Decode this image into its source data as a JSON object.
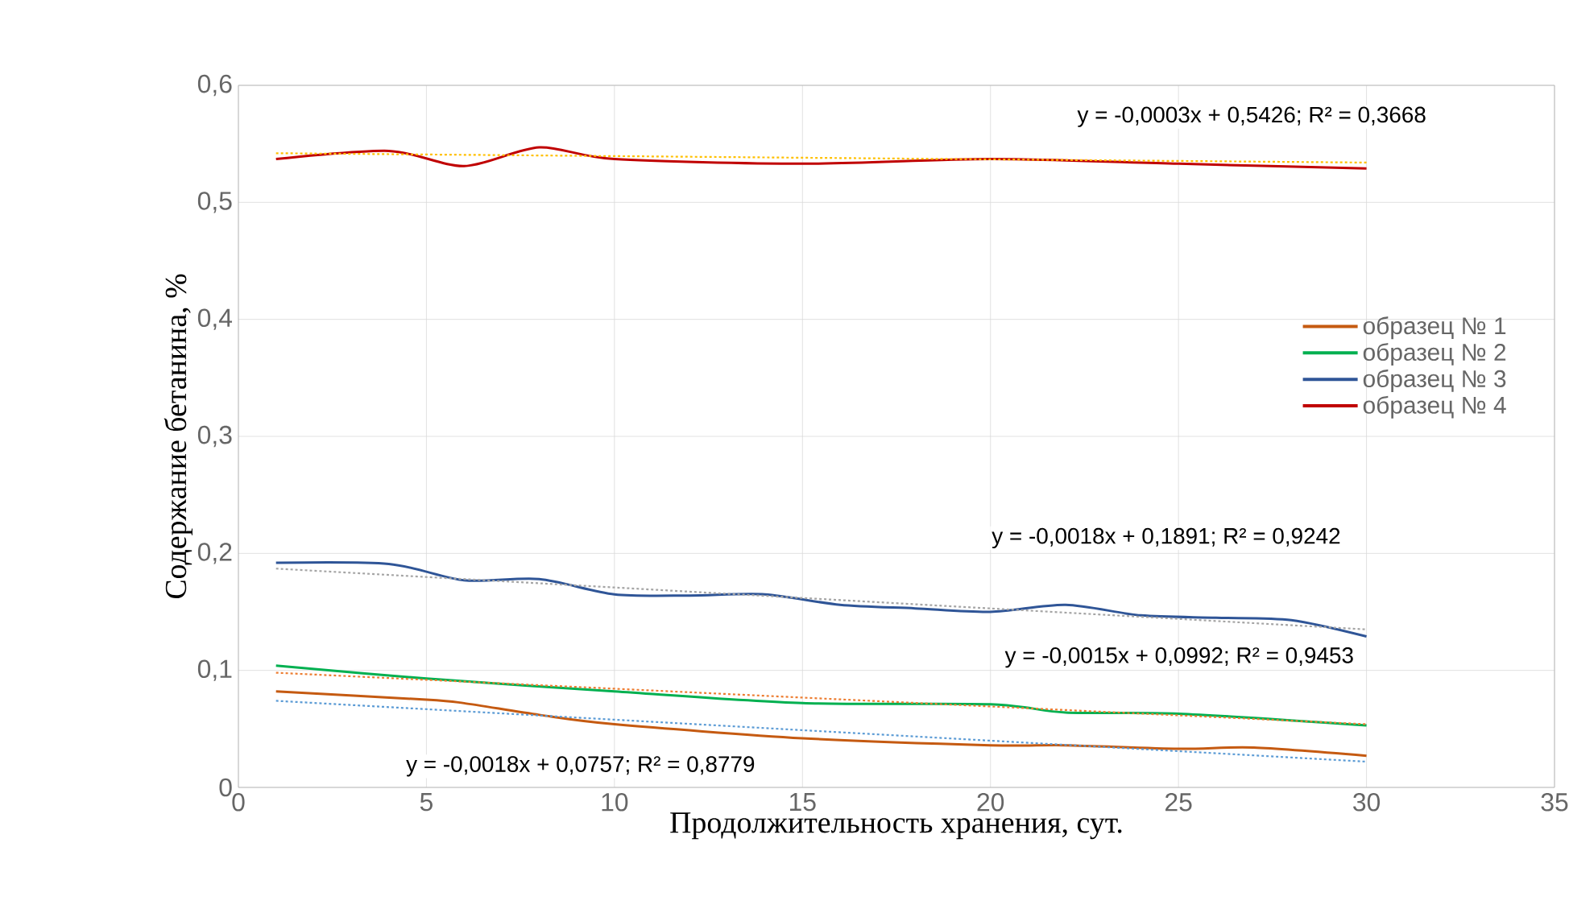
{
  "chart_data": {
    "type": "line",
    "xlabel": "Продолжительность хранения, сут.",
    "ylabel": "Содержание бетанина, %",
    "xlim": [
      0,
      35
    ],
    "xticks": [
      0,
      5,
      10,
      15,
      20,
      25,
      30,
      35
    ],
    "ylim": [
      0,
      0.6
    ],
    "yticks": [
      {
        "value": 0,
        "label": "0"
      },
      {
        "value": 0.1,
        "label": "0,1"
      },
      {
        "value": 0.2,
        "label": "0,2"
      },
      {
        "value": 0.3,
        "label": "0,3"
      },
      {
        "value": 0.4,
        "label": "0,4"
      },
      {
        "value": 0.5,
        "label": "0,5"
      },
      {
        "value": 0.6,
        "label": "0,6"
      }
    ],
    "grid": true,
    "legend": "right",
    "series": [
      {
        "name": "образец № 1",
        "color": "#c55a11",
        "line_style": "solid",
        "x": [
          1,
          5,
          6,
          8,
          10,
          15,
          20,
          22,
          25,
          27,
          30
        ],
        "values": [
          0.082,
          0.075,
          0.072,
          0.062,
          0.054,
          0.042,
          0.036,
          0.036,
          0.033,
          0.034,
          0.027
        ]
      },
      {
        "name": "образец № 2",
        "color": "#00b050",
        "line_style": "solid",
        "x": [
          1,
          5,
          10,
          15,
          20,
          22,
          25,
          30
        ],
        "values": [
          0.104,
          0.093,
          0.082,
          0.072,
          0.071,
          0.064,
          0.063,
          0.053
        ]
      },
      {
        "name": "образец № 3",
        "color": "#2f5597",
        "line_style": "solid",
        "x": [
          1,
          4,
          6,
          8,
          10,
          12,
          14,
          16,
          18,
          20,
          22,
          24,
          26,
          28,
          30
        ],
        "values": [
          0.192,
          0.191,
          0.177,
          0.178,
          0.165,
          0.164,
          0.165,
          0.156,
          0.153,
          0.15,
          0.156,
          0.147,
          0.145,
          0.143,
          0.129
        ]
      },
      {
        "name": "образец № 4",
        "color": "#c00000",
        "line_style": "solid",
        "x": [
          1,
          4,
          6,
          8,
          10,
          15,
          20,
          25,
          30
        ],
        "values": [
          0.537,
          0.544,
          0.531,
          0.547,
          0.537,
          0.533,
          0.537,
          0.533,
          0.529
        ]
      },
      {
        "color": "#5b9bd5",
        "line_style": "dotted",
        "x": [
          1,
          30
        ],
        "values": [
          0.074,
          0.022
        ]
      },
      {
        "color": "#ed7d31",
        "line_style": "dotted",
        "x": [
          1,
          30
        ],
        "values": [
          0.098,
          0.054
        ]
      },
      {
        "color": "#a5a5a5",
        "line_style": "dotted",
        "x": [
          1,
          30
        ],
        "values": [
          0.187,
          0.135
        ]
      },
      {
        "color": "#ffc000",
        "line_style": "dotted",
        "x": [
          1,
          30
        ],
        "values": [
          0.542,
          0.534
        ]
      }
    ],
    "annotations": [
      "y = -0,0003x + 0,5426; R² = 0,3668",
      "y = -0,0018x + 0,1891; R² = 0,9242",
      "y = -0,0015x + 0,0992; R² = 0,9453",
      "y = -0,0018x + 0,0757; R² = 0,8779"
    ]
  }
}
